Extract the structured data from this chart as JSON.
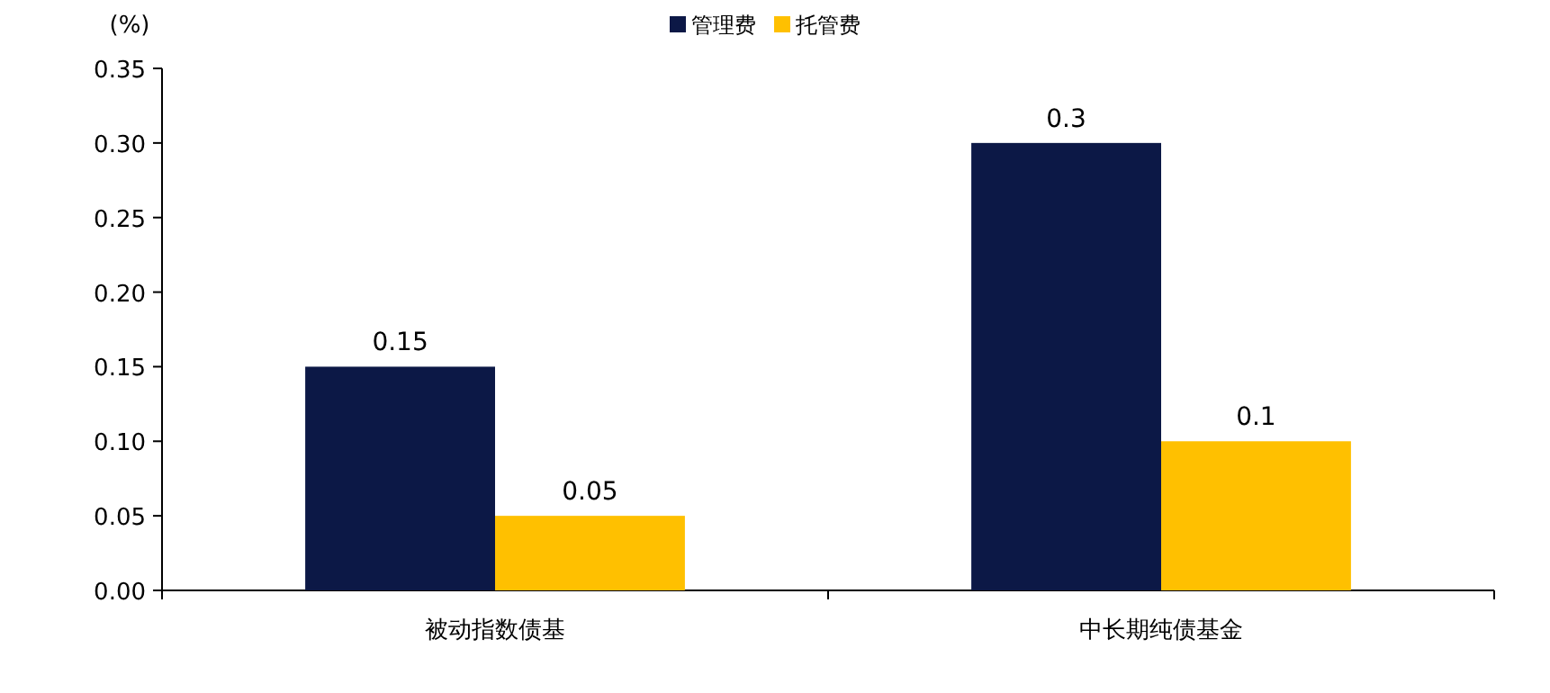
{
  "chart_data": {
    "type": "bar",
    "ylabel": "(%)",
    "categories": [
      "被动指数债基",
      "中长期纯债基金"
    ],
    "series": [
      {
        "name": "管理费",
        "color": "#0c1846",
        "values": [
          0.15,
          0.3
        ]
      },
      {
        "name": "托管费",
        "color": "#ffc000",
        "values": [
          0.05,
          0.1
        ]
      }
    ],
    "ylim": [
      0,
      0.35
    ],
    "yticks": [
      {
        "value": 0,
        "label": "0.00"
      },
      {
        "value": 0.05,
        "label": "0.05"
      },
      {
        "value": 0.1,
        "label": "0.10"
      },
      {
        "value": 0.15,
        "label": "0.15"
      },
      {
        "value": 0.2,
        "label": "0.20"
      },
      {
        "value": 0.25,
        "label": "0.25"
      },
      {
        "value": 0.3,
        "label": "0.30"
      },
      {
        "value": 0.35,
        "label": "0.35"
      }
    ],
    "data_labels": true,
    "legend": "top",
    "grid": false
  }
}
